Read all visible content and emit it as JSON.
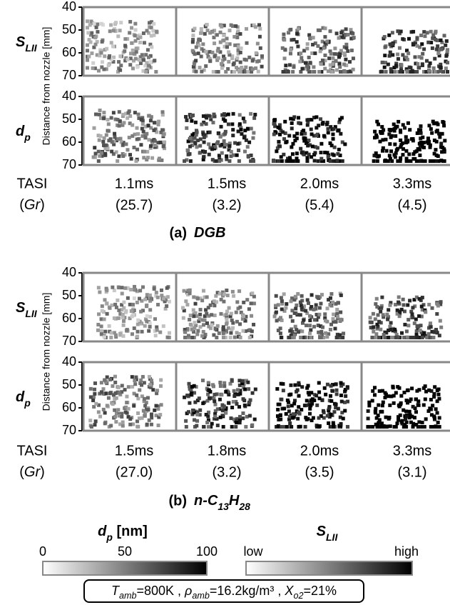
{
  "panels": [
    {
      "rows": [
        {
          "runs": [
            {
              "text": "S",
              "italic": true
            },
            {
              "text": "LII",
              "sub": true,
              "italic": true
            }
          ]
        },
        {
          "runs": [
            {
              "text": "d",
              "italic": true
            },
            {
              "text": "p",
              "sub": true,
              "italic": true
            }
          ]
        }
      ],
      "y_axis_label": "Distance from nozzle [mm]",
      "ylim": [
        40,
        70
      ],
      "yticks": [
        40,
        50,
        60,
        70
      ],
      "row_header_1": "TASI",
      "row_header_2": {
        "runs": [
          {
            "text": "("
          },
          {
            "text": "Gr",
            "italic": true
          },
          {
            "text": ")"
          }
        ]
      },
      "columns": [
        {
          "time": "1.1ms",
          "gr": "(25.7)"
        },
        {
          "time": "1.5ms",
          "gr": "(3.2)"
        },
        {
          "time": "2.0ms",
          "gr": "(5.4)"
        },
        {
          "time": "3.3ms",
          "gr": "(4.5)"
        }
      ],
      "caption_label": "(a)",
      "caption_title": {
        "runs": [
          {
            "text": "DGB",
            "italic": true
          }
        ]
      }
    },
    {
      "rows": [
        {
          "runs": [
            {
              "text": "S",
              "italic": true
            },
            {
              "text": "LII",
              "sub": true,
              "italic": true
            }
          ]
        },
        {
          "runs": [
            {
              "text": "d",
              "italic": true
            },
            {
              "text": "p",
              "sub": true,
              "italic": true
            }
          ]
        }
      ],
      "y_axis_label": "Distance from nozzle [mm]",
      "ylim": [
        40,
        70
      ],
      "yticks": [
        40,
        50,
        60,
        70
      ],
      "row_header_1": "TASI",
      "row_header_2": {
        "runs": [
          {
            "text": "("
          },
          {
            "text": "Gr",
            "italic": true
          },
          {
            "text": ")"
          }
        ]
      },
      "columns": [
        {
          "time": "1.5ms",
          "gr": "(27.0)"
        },
        {
          "time": "1.8ms",
          "gr": "(3.2)"
        },
        {
          "time": "2.0ms",
          "gr": "(3.5)"
        },
        {
          "time": "3.3ms",
          "gr": "(3.1)"
        }
      ],
      "caption_label": "(b)",
      "caption_title": {
        "runs": [
          {
            "text": "n-C",
            "italic": true
          },
          {
            "text": "13",
            "sub": true,
            "italic": true
          },
          {
            "text": "H",
            "italic": true
          },
          {
            "text": "28",
            "sub": true,
            "italic": true
          }
        ]
      }
    }
  ],
  "colorbars": [
    {
      "title": {
        "runs": [
          {
            "text": "d",
            "italic": true
          },
          {
            "text": "p",
            "sub": true,
            "italic": true
          },
          {
            "text": " [nm]"
          }
        ]
      },
      "lim": [
        0,
        100
      ],
      "ticks": [
        0,
        50,
        100
      ]
    },
    {
      "title": {
        "runs": [
          {
            "text": "S",
            "italic": true
          },
          {
            "text": "LII",
            "sub": true,
            "italic": true
          }
        ]
      },
      "low_label": "low",
      "high_label": "high"
    }
  ],
  "conditions": {
    "runs": [
      {
        "text": "T",
        "italic": true
      },
      {
        "text": "amb",
        "sub": true,
        "italic": true
      },
      {
        "text": "=800K , "
      },
      {
        "text": "ρ",
        "italic": true
      },
      {
        "text": "amb",
        "sub": true,
        "italic": true
      },
      {
        "text": "=16.2kg/m³ , "
      },
      {
        "text": "X",
        "italic": true
      },
      {
        "text": "o2",
        "sub": true,
        "italic": true
      },
      {
        "text": "=21%"
      }
    ]
  }
}
